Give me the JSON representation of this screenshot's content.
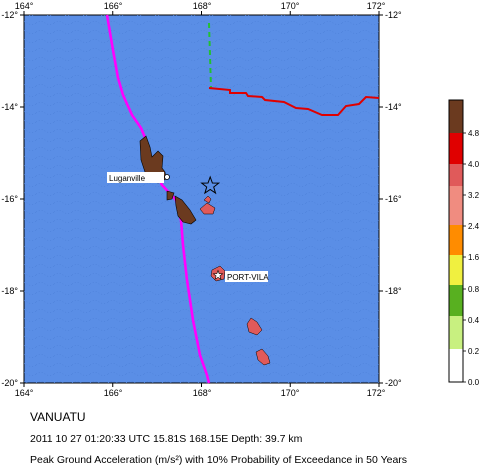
{
  "map": {
    "lon_range": [
      164,
      172
    ],
    "lat_range": [
      -20,
      -12
    ],
    "lon_ticks": [
      "164°",
      "166°",
      "168°",
      "170°",
      "172°"
    ],
    "lat_ticks": [
      "-12°",
      "-14°",
      "-16°",
      "-18°",
      "-20°"
    ],
    "ocean_color": "#5a8ee6",
    "places": [
      {
        "name": "Luganville",
        "lon": 167.17,
        "lat": -15.52
      },
      {
        "name": "PORT-VILA",
        "lon": 168.32,
        "lat": -17.73
      }
    ],
    "epicenter": {
      "lon": 168.15,
      "lat": -15.81,
      "icon": "star-icon"
    }
  },
  "legend": {
    "ticks": [
      "0.0",
      "0.2",
      "0.4",
      "0.8",
      "1.6",
      "2.4",
      "3.2",
      "4.0",
      "4.8"
    ],
    "colors": [
      "#ffffff",
      "#c8f080",
      "#58b020",
      "#f0f040",
      "#ff8c00",
      "#f08c80",
      "#e05a5a",
      "#e00000",
      "#6b3a1f"
    ]
  },
  "caption": {
    "title": "VANUATU",
    "event": "2011 10 27 01:20:33 UTC 15.81S 168.15E Depth: 39.7 km",
    "desc": "Peak Ground Acceleration (m/s²) with 10% Probability of Exceedance in 50 Years"
  }
}
